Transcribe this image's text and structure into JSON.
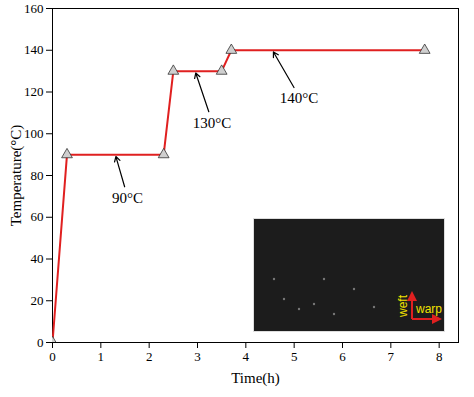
{
  "chart_data": {
    "type": "line",
    "x": [
      0,
      0.3,
      2.3,
      2.5,
      3.5,
      3.7,
      7.7
    ],
    "series": [
      {
        "name": "Temperature",
        "color": "#e02020",
        "marker": "triangle",
        "values": [
          0,
          90,
          90,
          130,
          130,
          140,
          140
        ]
      }
    ],
    "xlabel": "Time(h)",
    "ylabel": "Temperature(°C)",
    "xlim": [
      0,
      8.4
    ],
    "xticks": [
      0,
      1,
      2,
      3,
      4,
      5,
      6,
      7,
      8
    ],
    "ylim": [
      0,
      160
    ],
    "yticks": [
      0,
      20,
      40,
      60,
      80,
      100,
      120,
      140,
      160
    ],
    "annotations": [
      {
        "text": "90°C",
        "point": [
          1.3,
          90
        ],
        "text_at": [
          1.55,
          70
        ]
      },
      {
        "text": "130°C",
        "point": [
          2.95,
          130
        ],
        "text_at": [
          3.3,
          106
        ]
      },
      {
        "text": "140°C",
        "point": [
          4.55,
          140
        ],
        "text_at": [
          5.1,
          118
        ]
      }
    ],
    "inset_labels": [
      "weft",
      "warp"
    ]
  }
}
